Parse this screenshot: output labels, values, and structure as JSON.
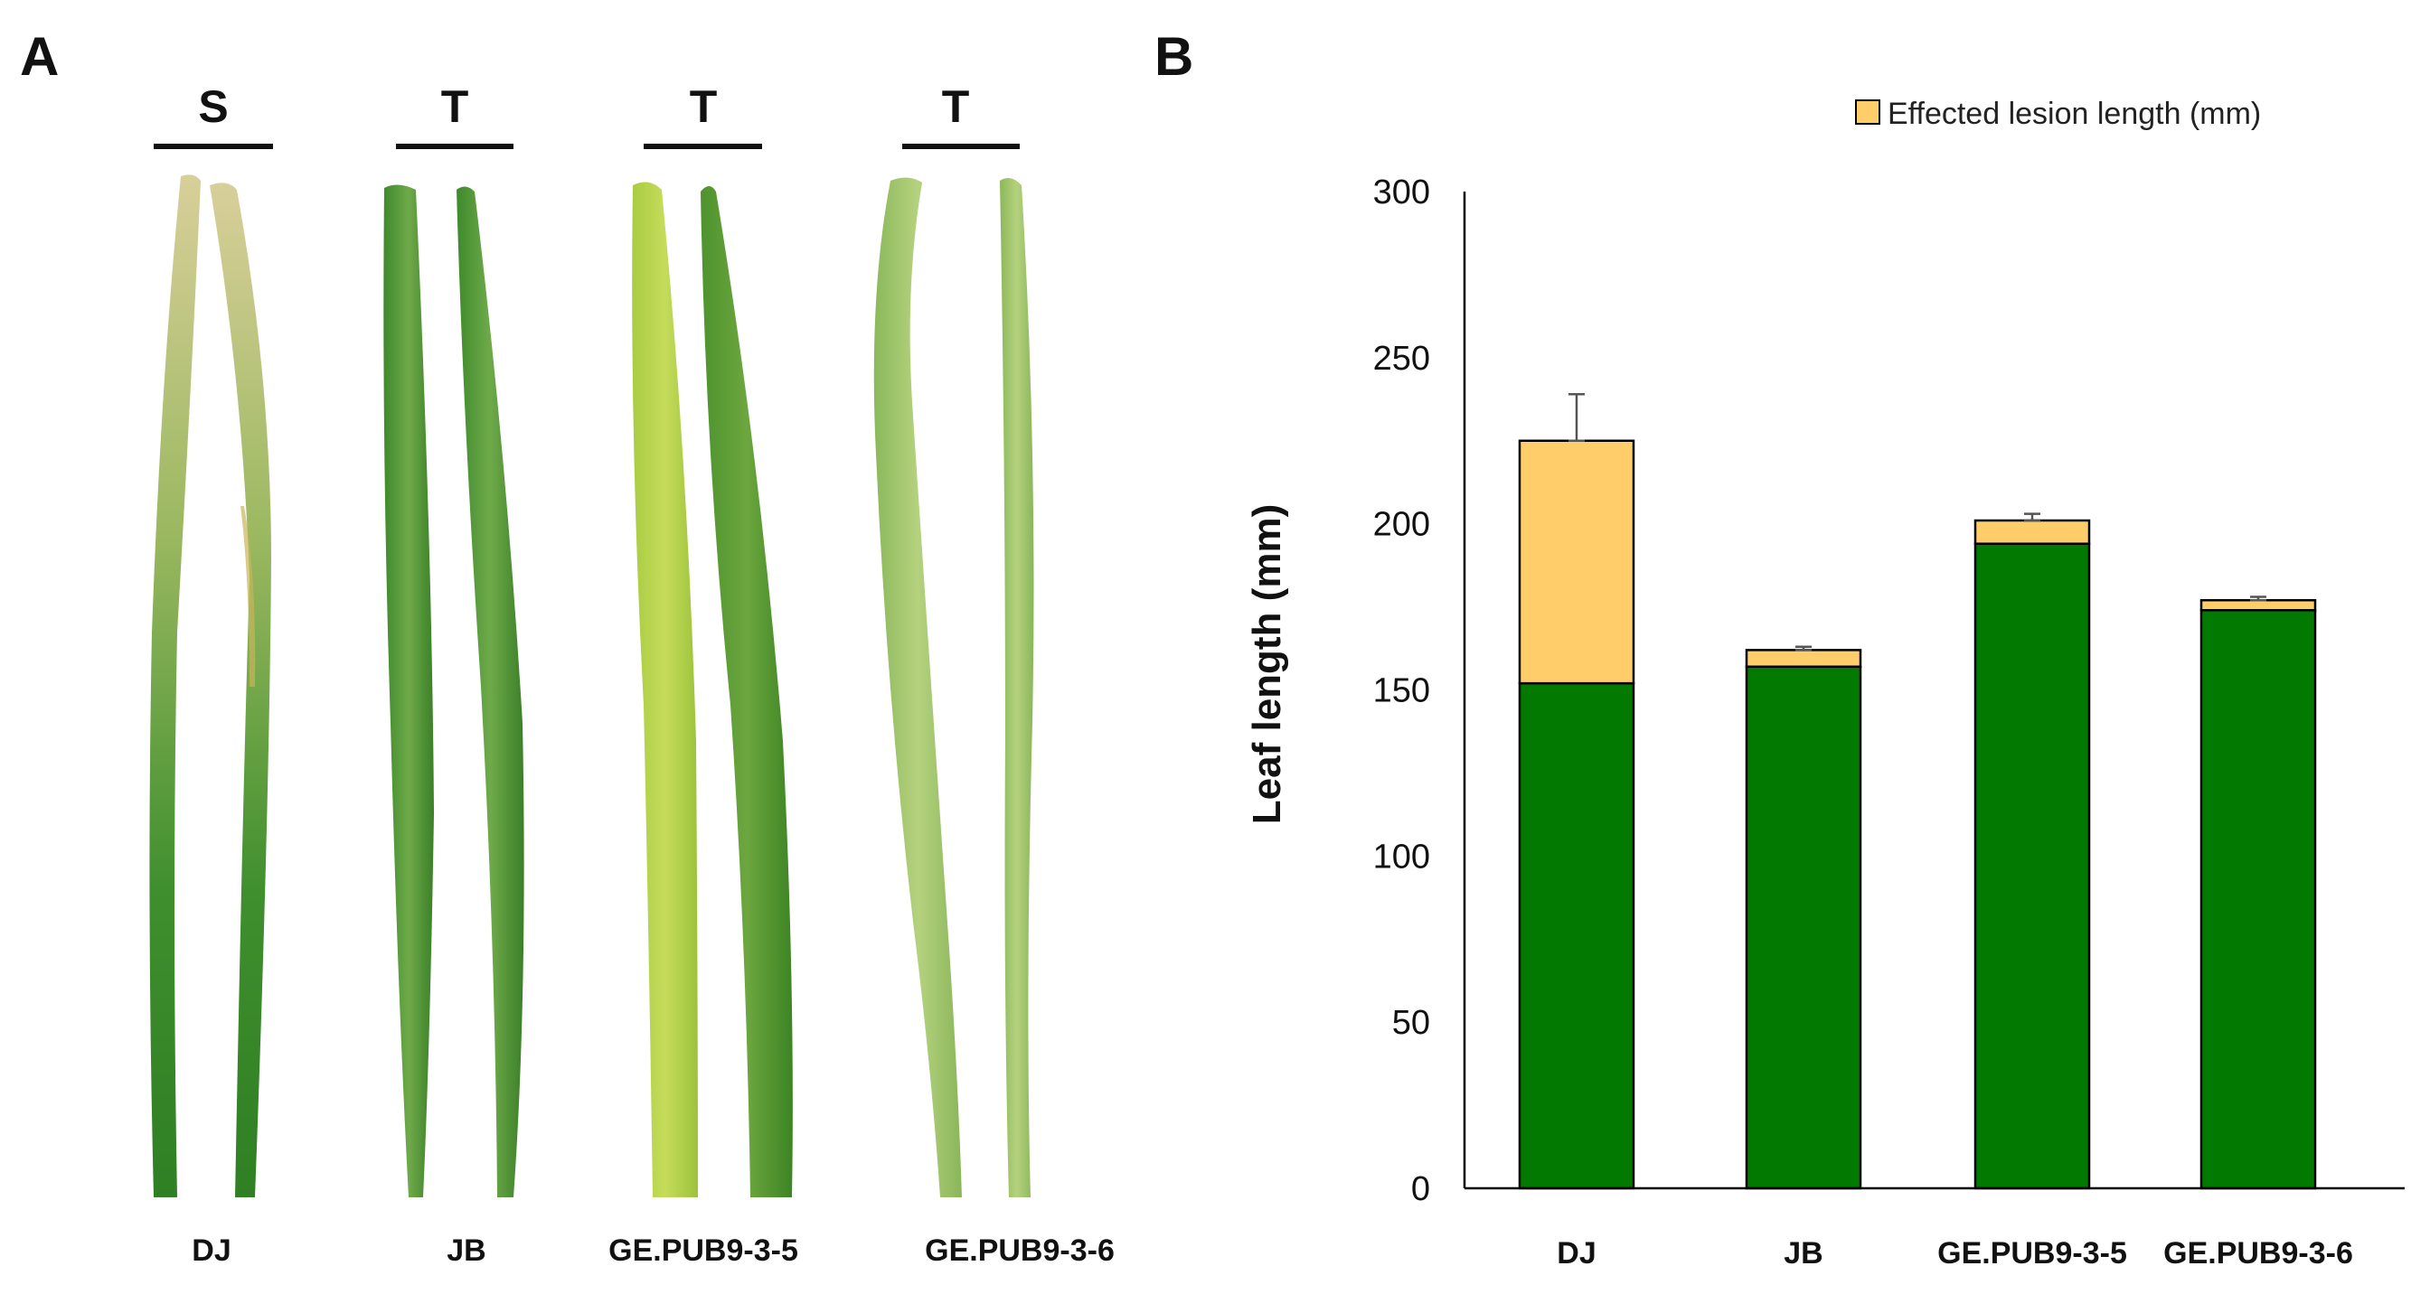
{
  "panel_a": {
    "letter": "A",
    "samples": [
      {
        "label": "DJ",
        "phenotype": "S"
      },
      {
        "label": "JB",
        "phenotype": "T"
      },
      {
        "label": "GE.PUB9-3-5",
        "phenotype": "T"
      },
      {
        "label": "GE.PUB9-3-6",
        "phenotype": "T"
      }
    ]
  },
  "panel_b": {
    "letter": "B"
  },
  "colors": {
    "healthy": "#027a02",
    "lesion": "#ffcd6a",
    "axis": "#000000"
  },
  "chart_data": {
    "type": "bar",
    "stacked": true,
    "categories": [
      "DJ",
      "JB",
      "GE.PUB9-3-5",
      "GE.PUB9-3-6"
    ],
    "series": [
      {
        "name": "",
        "color": "#027a02",
        "values": [
          152,
          157,
          194,
          174
        ]
      },
      {
        "name": "Effected lesion length (mm)",
        "color": "#ffcd6a",
        "values": [
          73,
          5,
          7,
          3
        ]
      }
    ],
    "totals": [
      225,
      162,
      201,
      177
    ],
    "error_bars_upper": [
      14,
      1,
      2,
      1
    ],
    "ylabel": "Leaf length (mm)",
    "xlabel": "",
    "ylim": [
      0,
      300
    ],
    "yticks": [
      0,
      50,
      100,
      150,
      200,
      250,
      300
    ],
    "legend_position": "top-right",
    "grid": false
  }
}
